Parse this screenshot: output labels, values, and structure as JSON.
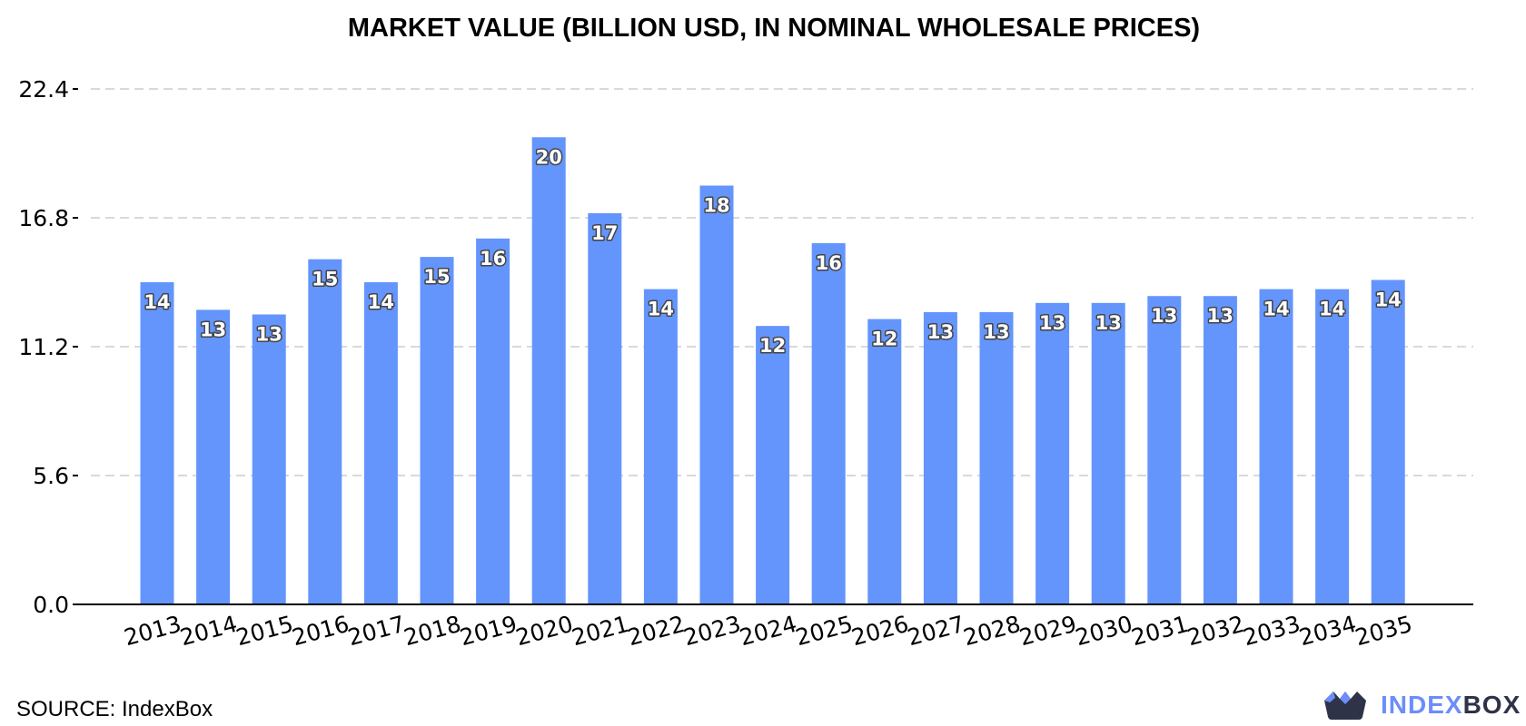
{
  "chart_data": {
    "type": "bar",
    "title": "MARKET VALUE (BILLION USD, IN NOMINAL WHOLESALE PRICES)",
    "xlabel": "",
    "ylabel": "",
    "categories": [
      "2013",
      "2014",
      "2015",
      "2016",
      "2017",
      "2018",
      "2019",
      "2020",
      "2021",
      "2022",
      "2023",
      "2024",
      "2025",
      "2026",
      "2027",
      "2028",
      "2029",
      "2030",
      "2031",
      "2032",
      "2033",
      "2034",
      "2035"
    ],
    "values": [
      14.0,
      12.8,
      12.6,
      15.0,
      14.0,
      15.1,
      15.9,
      20.3,
      17.0,
      13.7,
      18.2,
      12.1,
      15.7,
      12.4,
      12.7,
      12.7,
      13.1,
      13.1,
      13.4,
      13.4,
      13.7,
      13.7,
      14.1
    ],
    "data_labels": [
      "14",
      "13",
      "13",
      "15",
      "14",
      "15",
      "16",
      "20",
      "17",
      "14",
      "18",
      "12",
      "16",
      "12",
      "13",
      "13",
      "13",
      "13",
      "13",
      "13",
      "14",
      "14",
      "14"
    ],
    "y_ticks": [
      "0.0",
      "5.6",
      "11.2",
      "16.8",
      "22.4"
    ],
    "ylim": [
      0,
      22.4
    ],
    "grid": true,
    "bar_color": "#6495fc"
  },
  "footer": {
    "source": "SOURCE: IndexBox",
    "brand_part1": "INDEX",
    "brand_part2": "BOX",
    "logo_icon": "indexbox-crown-logo-icon"
  }
}
